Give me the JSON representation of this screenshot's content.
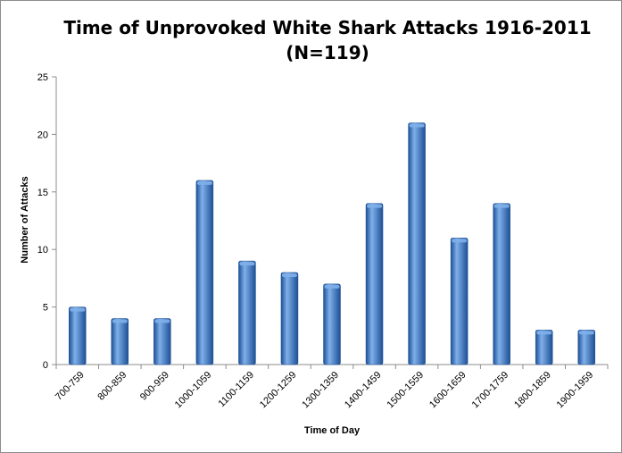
{
  "chart_data": {
    "type": "bar",
    "title": "Time of Unprovoked White Shark Attacks 1916-2011",
    "subtitle": "(N=119)",
    "xlabel": "Time of Day",
    "ylabel": "Number of Attacks",
    "categories": [
      "700-759",
      "800-859",
      "900-959",
      "1000-1059",
      "1100-1159",
      "1200-1259",
      "1300-1359",
      "1400-1459",
      "1500-1559",
      "1600-1659",
      "1700-1759",
      "1800-1859",
      "1900-1959"
    ],
    "values": [
      5,
      4,
      4,
      16,
      9,
      8,
      7,
      14,
      21,
      11,
      14,
      3,
      3
    ],
    "ylim": [
      0,
      25
    ],
    "yticks": [
      "0",
      "5",
      "10",
      "15",
      "20",
      "25"
    ],
    "grid": false,
    "legend": "none",
    "colors": {
      "bar": "#3a77c6",
      "bar_light": "#7fb0ea",
      "bar_dark": "#1d4f95",
      "axis": "#8c8c8c"
    }
  }
}
